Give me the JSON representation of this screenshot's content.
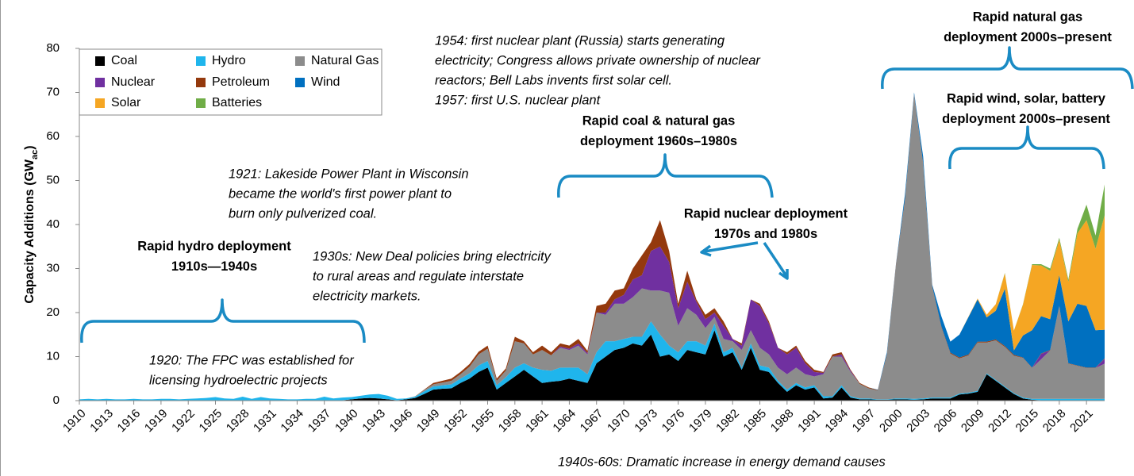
{
  "chart_data": {
    "type": "stacked_area",
    "y_label": [
      "Capacity Additions (GW",
      "ac",
      ")"
    ],
    "x": [
      1910,
      1911,
      1912,
      1913,
      1914,
      1915,
      1916,
      1917,
      1918,
      1919,
      1920,
      1921,
      1922,
      1923,
      1924,
      1925,
      1926,
      1927,
      1928,
      1929,
      1930,
      1931,
      1932,
      1933,
      1934,
      1935,
      1936,
      1937,
      1938,
      1939,
      1940,
      1941,
      1942,
      1943,
      1944,
      1945,
      1946,
      1947,
      1948,
      1949,
      1950,
      1951,
      1952,
      1953,
      1954,
      1955,
      1956,
      1957,
      1958,
      1959,
      1960,
      1961,
      1962,
      1963,
      1964,
      1965,
      1966,
      1967,
      1968,
      1969,
      1970,
      1971,
      1972,
      1973,
      1974,
      1975,
      1976,
      1977,
      1978,
      1979,
      1980,
      1981,
      1982,
      1983,
      1984,
      1985,
      1986,
      1987,
      1988,
      1989,
      1990,
      1991,
      1992,
      1993,
      1994,
      1995,
      1996,
      1997,
      1998,
      1999,
      2000,
      2001,
      2002,
      2003,
      2004,
      2005,
      2006,
      2007,
      2008,
      2009,
      2010,
      2011,
      2012,
      2013,
      2014,
      2015,
      2016,
      2017,
      2018,
      2019,
      2020,
      2021,
      2022,
      2023
    ],
    "xlim": [
      1910,
      2023
    ],
    "xticks": [
      1910,
      1913,
      1916,
      1919,
      1922,
      1925,
      1928,
      1931,
      1934,
      1937,
      1940,
      1943,
      1946,
      1949,
      1952,
      1955,
      1958,
      1961,
      1964,
      1967,
      1970,
      1973,
      1976,
      1979,
      1982,
      1985,
      1988,
      1991,
      1994,
      1997,
      2000,
      2003,
      2006,
      2009,
      2012,
      2015,
      2018,
      2021
    ],
    "ylim": [
      0,
      80
    ],
    "yticks": [
      0,
      10,
      20,
      30,
      40,
      50,
      60,
      70,
      80
    ],
    "grid": false,
    "legend": "top-left",
    "series": [
      {
        "name": "Coal",
        "color": "#000000",
        "values": [
          0.1,
          0.1,
          0.1,
          0.1,
          0.1,
          0.1,
          0.1,
          0.1,
          0.1,
          0.1,
          0.1,
          0.1,
          0.1,
          0.1,
          0.1,
          0.1,
          0.1,
          0.1,
          0.1,
          0.1,
          0.1,
          0.1,
          0.1,
          0.1,
          0.1,
          0.1,
          0.1,
          0.1,
          0.1,
          0.1,
          0.3,
          0.5,
          0.6,
          0.5,
          0.3,
          0.1,
          0.3,
          0.6,
          1.5,
          2.5,
          2.7,
          2.8,
          4,
          5,
          6.5,
          7.5,
          2.5,
          4,
          5.5,
          7,
          5.5,
          4,
          4.3,
          4.5,
          5,
          4.5,
          4,
          8.5,
          10,
          11.5,
          12,
          13,
          12.5,
          15,
          10,
          10.5,
          9,
          11.5,
          11,
          10.5,
          16,
          10,
          11,
          7,
          12,
          7,
          6.5,
          4,
          2,
          3.5,
          2.5,
          3,
          0.5,
          0.7,
          3,
          0.7,
          0.3,
          0.3,
          0.2,
          0.2,
          0.3,
          0.3,
          0.2,
          0.3,
          0.5,
          0.5,
          0.5,
          1.4,
          1.6,
          2,
          6,
          4.5,
          3,
          1.5,
          0.5,
          0.2,
          0.1,
          0.1,
          0.1,
          0.1,
          0.1,
          0.1,
          0.1,
          0.1
        ]
      },
      {
        "name": "Hydro",
        "color": "#1fb5ec",
        "values": [
          0.2,
          0.3,
          0.2,
          0.3,
          0.2,
          0.2,
          0.3,
          0.2,
          0.2,
          0.3,
          0.3,
          0.2,
          0.3,
          0.4,
          0.5,
          0.7,
          0.4,
          0.3,
          0.8,
          0.3,
          0.7,
          0.4,
          0.3,
          0.2,
          0.2,
          0.3,
          0.3,
          0.8,
          0.4,
          0.6,
          0.5,
          0.6,
          0.8,
          1.0,
          0.8,
          0.3,
          0.2,
          0.3,
          0.6,
          0.7,
          0.8,
          0.9,
          1,
          1.2,
          1.5,
          1.5,
          1,
          1.3,
          2,
          1.5,
          2,
          3,
          2.5,
          3,
          2.5,
          3,
          2,
          2.5,
          3.5,
          2,
          2,
          1.5,
          2,
          3,
          5,
          2,
          2,
          2,
          2.5,
          2,
          1.5,
          1,
          1,
          0.5,
          1,
          1,
          1,
          0.5,
          0.5,
          0.5,
          0.5,
          0.5,
          0.5,
          0.3,
          0.5,
          0.3,
          0.2,
          0.2,
          0.1,
          0.1,
          0.2,
          0.2,
          0.2,
          0.2,
          0.2,
          0.2,
          0.2,
          0.2,
          0.2,
          0.2,
          0.2,
          0.2,
          0.2,
          0.2,
          0.2,
          0.2,
          0.3,
          0.3,
          0.3,
          0.3,
          0.3,
          0.3,
          0.3,
          0.3
        ]
      },
      {
        "name": "Natural Gas",
        "color": "#8c8c8c",
        "values": [
          0,
          0,
          0,
          0,
          0,
          0,
          0,
          0,
          0,
          0,
          0,
          0,
          0,
          0,
          0,
          0,
          0,
          0,
          0,
          0,
          0,
          0,
          0,
          0,
          0,
          0,
          0,
          0,
          0,
          0,
          0,
          0,
          0,
          0,
          0,
          0,
          0,
          0.1,
          0.3,
          0.5,
          0.6,
          0.8,
          1,
          1.5,
          2.5,
          2.8,
          1,
          1.5,
          6,
          4.5,
          3,
          4.5,
          3.5,
          4.5,
          4,
          5,
          4.5,
          9,
          6,
          8.5,
          8,
          9,
          11,
          7,
          10,
          12,
          6,
          7.5,
          6,
          4,
          1.5,
          3,
          1.5,
          4,
          3,
          4,
          3,
          3,
          3.5,
          3.5,
          3,
          2,
          5,
          9,
          6.5,
          5.5,
          3.3,
          2.3,
          2,
          10,
          30,
          45,
          69,
          53,
          25,
          16,
          10,
          8,
          8.5,
          11,
          7,
          9,
          9,
          8.5,
          9,
          7,
          9,
          11,
          21,
          8,
          7.5,
          7,
          7,
          8
        ]
      },
      {
        "name": "Nuclear",
        "color": "#7030a0",
        "values": [
          0,
          0,
          0,
          0,
          0,
          0,
          0,
          0,
          0,
          0,
          0,
          0,
          0,
          0,
          0,
          0,
          0,
          0,
          0,
          0,
          0,
          0,
          0,
          0,
          0,
          0,
          0,
          0,
          0,
          0,
          0,
          0,
          0,
          0,
          0,
          0,
          0,
          0,
          0,
          0,
          0,
          0,
          0,
          0,
          0,
          0,
          0,
          0,
          0,
          0,
          0,
          0,
          0,
          0.3,
          0.3,
          0.5,
          0.3,
          0,
          0.5,
          1,
          2,
          4,
          3,
          9,
          10,
          7,
          4,
          6,
          3,
          2,
          1,
          3,
          0.5,
          1,
          7,
          9.5,
          7,
          4.5,
          4.5,
          4.5,
          2.5,
          1,
          0.3,
          0,
          0.5,
          0.3,
          0,
          0,
          0,
          0,
          0,
          0,
          0,
          0,
          0,
          0,
          0,
          0,
          0,
          0,
          0,
          0,
          0,
          0,
          0,
          0,
          1.2,
          0,
          0,
          0,
          0,
          0,
          0,
          1.1
        ]
      },
      {
        "name": "Petroleum",
        "color": "#94390d",
        "values": [
          0,
          0,
          0,
          0,
          0,
          0,
          0,
          0,
          0,
          0,
          0,
          0,
          0,
          0,
          0,
          0,
          0,
          0,
          0,
          0,
          0,
          0,
          0,
          0,
          0,
          0,
          0,
          0,
          0,
          0,
          0,
          0,
          0,
          0,
          0,
          0,
          0,
          0,
          0.1,
          0.3,
          0.4,
          0.5,
          0.5,
          0.6,
          0.6,
          0.7,
          0.5,
          0.5,
          1,
          0.5,
          0.5,
          1,
          0.7,
          0.7,
          0.7,
          1,
          0.5,
          1.5,
          2,
          2,
          1.5,
          2.5,
          4.5,
          2,
          6,
          2.5,
          1,
          2.5,
          0.5,
          1,
          1,
          1,
          0,
          0.5,
          0,
          0.5,
          0.5,
          0,
          0.5,
          0.5,
          0.5,
          0.5,
          0.2,
          0.5,
          0.5,
          0.2,
          0.2,
          0.2,
          0.1,
          0.2,
          0.3,
          0.3,
          0.2,
          0.3,
          0.2,
          0.2,
          0.2,
          0.2,
          0.2,
          0.2,
          0.2,
          0.2,
          0.2,
          0.2,
          0.1,
          0.1,
          0.1,
          0.1,
          0.1,
          0.1,
          0.1,
          0.1,
          0.1,
          0.1
        ]
      },
      {
        "name": "Wind",
        "color": "#0070c0",
        "values": [
          0,
          0,
          0,
          0,
          0,
          0,
          0,
          0,
          0,
          0,
          0,
          0,
          0,
          0,
          0,
          0,
          0,
          0,
          0,
          0,
          0,
          0,
          0,
          0,
          0,
          0,
          0,
          0,
          0,
          0,
          0,
          0,
          0,
          0,
          0,
          0,
          0,
          0,
          0,
          0,
          0,
          0,
          0,
          0,
          0,
          0,
          0,
          0,
          0,
          0,
          0,
          0,
          0,
          0,
          0,
          0,
          0,
          0,
          0,
          0,
          0,
          0,
          0,
          0,
          0,
          0,
          0,
          0,
          0,
          0,
          0,
          0,
          0,
          0,
          0,
          0,
          0,
          0,
          0,
          0,
          0,
          0,
          0,
          0,
          0,
          0,
          0,
          0,
          0.1,
          0.5,
          0.2,
          1.2,
          0.4,
          1.6,
          0.4,
          2.3,
          2.5,
          5.2,
          8.5,
          9.6,
          5.5,
          6.5,
          13,
          1,
          5,
          8.5,
          8.5,
          7,
          7,
          9.5,
          14,
          14,
          8.5,
          6.5
        ]
      },
      {
        "name": "Solar",
        "color": "#f5a623",
        "values": [
          0,
          0,
          0,
          0,
          0,
          0,
          0,
          0,
          0,
          0,
          0,
          0,
          0,
          0,
          0,
          0,
          0,
          0,
          0,
          0,
          0,
          0,
          0,
          0,
          0,
          0,
          0,
          0,
          0,
          0,
          0,
          0,
          0,
          0,
          0,
          0,
          0,
          0,
          0,
          0,
          0,
          0,
          0,
          0,
          0,
          0,
          0,
          0,
          0,
          0,
          0,
          0,
          0,
          0,
          0,
          0,
          0,
          0,
          0,
          0,
          0,
          0,
          0,
          0,
          0,
          0,
          0,
          0,
          0,
          0,
          0,
          0,
          0,
          0,
          0,
          0,
          0,
          0,
          0,
          0,
          0,
          0,
          0,
          0,
          0,
          0,
          0,
          0,
          0,
          0,
          0,
          0,
          0,
          0,
          0,
          0,
          0,
          0,
          0.1,
          0.2,
          0.6,
          1.5,
          3.5,
          4.5,
          7,
          14.8,
          11.5,
          11,
          8,
          9,
          16,
          19.5,
          18.5,
          26
        ]
      },
      {
        "name": "Batteries",
        "color": "#70ad47",
        "values": [
          0,
          0,
          0,
          0,
          0,
          0,
          0,
          0,
          0,
          0,
          0,
          0,
          0,
          0,
          0,
          0,
          0,
          0,
          0,
          0,
          0,
          0,
          0,
          0,
          0,
          0,
          0,
          0,
          0,
          0,
          0,
          0,
          0,
          0,
          0,
          0,
          0,
          0,
          0,
          0,
          0,
          0,
          0,
          0,
          0,
          0,
          0,
          0,
          0,
          0,
          0,
          0,
          0,
          0,
          0,
          0,
          0,
          0,
          0,
          0,
          0,
          0,
          0,
          0,
          0,
          0,
          0,
          0,
          0,
          0,
          0,
          0,
          0,
          0,
          0,
          0,
          0,
          0,
          0,
          0,
          0,
          0,
          0,
          0,
          0,
          0,
          0,
          0,
          0,
          0,
          0,
          0,
          0,
          0,
          0,
          0,
          0,
          0,
          0,
          0,
          0,
          0,
          0.1,
          0,
          0.1,
          0.2,
          0.3,
          0.5,
          0.5,
          0.5,
          1,
          3.5,
          3,
          7
        ]
      }
    ],
    "notes": [
      [
        "1954: first nuclear plant (Russia) starts generating",
        "electricity; Congress allows private ownership of nuclear",
        "reactors; Bell Labs invents first solar cell.",
        "1957: first U.S. nuclear plant"
      ],
      [
        "1921: Lakeside Power Plant in Wisconsin",
        "became the world's first power plant to",
        "burn only pulverized coal."
      ],
      [
        "1930s: New Deal policies bring electricity",
        "to rural areas and regulate interstate",
        "electricity markets."
      ],
      [
        "1920: The FPC was established for",
        "licensing hydroelectric projects"
      ],
      [
        "1940s-60s: Dramatic increase in energy demand causes"
      ]
    ],
    "callouts": [
      [
        "Rapid hydro deployment",
        "1910s—1940s"
      ],
      [
        "Rapid coal & natural gas",
        "deployment 1960s–1980s"
      ],
      [
        "Rapid nuclear deployment",
        "1970s and 1980s"
      ],
      [
        "Rapid natural gas",
        "deployment 2000s–present"
      ],
      [
        "Rapid wind, solar, battery",
        "deployment 2000s–present"
      ]
    ]
  }
}
